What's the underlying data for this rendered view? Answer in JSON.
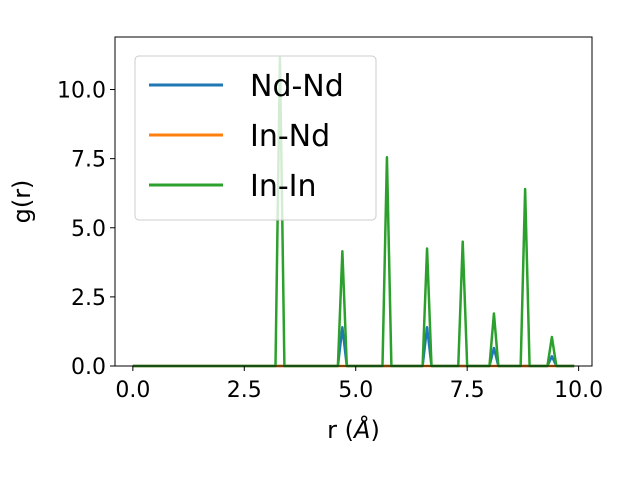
{
  "chart_data": {
    "type": "line",
    "xlabel_main": "r (",
    "xlabel_unit": "Å",
    "xlabel_close": ")",
    "ylabel": "g(r)",
    "xlim": [
      -0.4,
      10.3
    ],
    "ylim": [
      0,
      11.9
    ],
    "xticks": [
      0.0,
      2.5,
      5.0,
      7.5,
      10.0
    ],
    "xtick_labels": [
      "0.0",
      "2.5",
      "5.0",
      "7.5",
      "10.0"
    ],
    "yticks": [
      0.0,
      2.5,
      5.0,
      7.5,
      10.0
    ],
    "ytick_labels": [
      "0.0",
      "2.5",
      "5.0",
      "7.5",
      "10.0"
    ],
    "grid": false,
    "legend_position": "top-left",
    "series": [
      {
        "name": "Nd-Nd",
        "color": "#1f77b4",
        "x": [
          0.0,
          4.6,
          4.7,
          4.8,
          6.5,
          6.6,
          6.7,
          8.0,
          8.1,
          8.2,
          9.3,
          9.4,
          9.5,
          9.9
        ],
        "y": [
          0.0,
          0.0,
          1.4,
          0.0,
          0.0,
          1.4,
          0.0,
          0.0,
          0.65,
          0.0,
          0.0,
          0.35,
          0.0,
          0.0
        ]
      },
      {
        "name": "In-Nd",
        "color": "#ff7f0e",
        "x": [
          0.0,
          9.9
        ],
        "y": [
          0.0,
          0.0
        ]
      },
      {
        "name": "In-In",
        "color": "#2ca02c",
        "x": [
          0.0,
          3.2,
          3.3,
          3.4,
          4.6,
          4.7,
          4.8,
          5.6,
          5.7,
          5.8,
          6.5,
          6.6,
          6.7,
          7.3,
          7.4,
          7.5,
          8.0,
          8.1,
          8.2,
          8.7,
          8.8,
          8.9,
          9.3,
          9.4,
          9.5,
          9.9
        ],
        "y": [
          0.0,
          0.0,
          11.15,
          0.0,
          0.0,
          4.15,
          0.0,
          0.0,
          7.55,
          0.0,
          0.0,
          4.25,
          0.0,
          0.0,
          4.5,
          0.0,
          0.0,
          1.9,
          0.0,
          0.0,
          6.4,
          0.0,
          0.0,
          1.05,
          0.0,
          0.0
        ]
      }
    ]
  }
}
